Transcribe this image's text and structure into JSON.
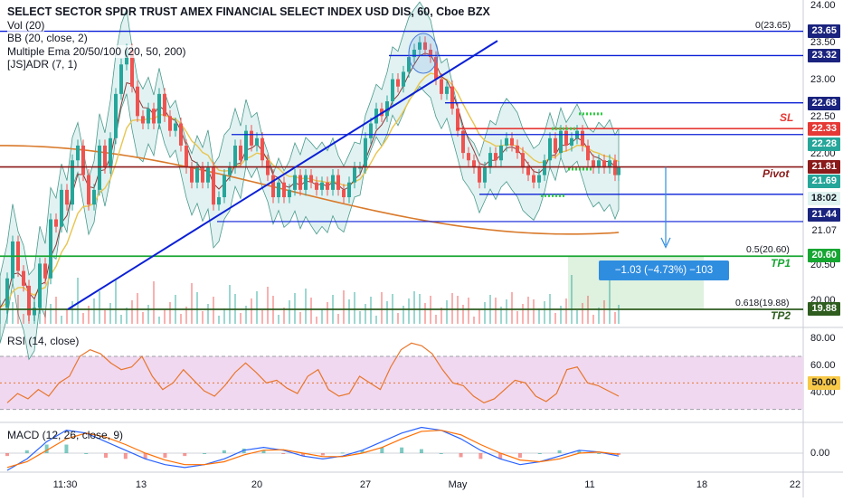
{
  "header": {
    "title": "SELECT SECTOR SPDR TRUST AMEX FINANCIAL SELECT INDEX USD DIS, 60, Cboe BZX",
    "indicators": [
      "Vol (20)",
      "BB (20, close, 2)",
      "Multiple Ema 20/50/100 (20, 50, 200)",
      "[JS]ADR (7, 1)"
    ]
  },
  "rsi_panel": {
    "label": "RSI (14, close)"
  },
  "macd_panel": {
    "label": "MACD (12, 26, close, 9)"
  },
  "annotations": {
    "sl": "SL",
    "pivot": "Pivot",
    "tp1": "TP1",
    "tp2": "TP2",
    "fib_top": "0(23.65)",
    "fib_05": "0.5(20.60)",
    "fib_0618": "0.618(19.88)",
    "measure": "−1.03 (−4.73%) −103"
  },
  "colors": {
    "up": "#26a69a",
    "down": "#ef5350",
    "trendline": "#0a1fd6",
    "sl_red": "#e53935",
    "pivot_dark_red": "#8b1a1a",
    "tp_green": "#17a632",
    "tp2_dark": "#2e5d1f",
    "bb_fill": "#d5ecec",
    "ema20": "#d97a2b",
    "ema50": "#e8c54f",
    "rsi_band": "#f0d8f0",
    "rsi_line": "#e8762c",
    "macd_line": "#2962ff",
    "signal_line": "#ff6d00"
  },
  "chart_data": [
    {
      "type": "candlestick",
      "title": "SELECT SECTOR SPDR TRUST AMEX FINANCIAL SELECT INDEX USD DIS, 60, Cboe BZX",
      "x": [
        "11:30",
        "13",
        "20",
        "27",
        "May",
        "11",
        "18",
        "22"
      ],
      "ylim": [
        19.5,
        24.0
      ],
      "y_ticks": [
        20.0,
        20.5,
        21.0,
        21.5,
        22.0,
        22.5,
        23.0,
        23.5,
        24.0
      ],
      "path_points": [
        [
          0,
          19.9
        ],
        [
          8,
          20.3
        ],
        [
          14,
          20.8
        ],
        [
          20,
          20.4
        ],
        [
          26,
          20.2
        ],
        [
          32,
          19.8
        ],
        [
          38,
          19.9
        ],
        [
          44,
          20.5
        ],
        [
          50,
          20.3
        ],
        [
          56,
          21.1
        ],
        [
          62,
          21.0
        ],
        [
          68,
          21.5
        ],
        [
          74,
          21.3
        ],
        [
          80,
          21.9
        ],
        [
          86,
          22.1
        ],
        [
          92,
          21.7
        ],
        [
          98,
          21.3
        ],
        [
          104,
          21.5
        ],
        [
          110,
          22.1
        ],
        [
          116,
          21.8
        ],
        [
          122,
          22.2
        ],
        [
          128,
          22.8
        ],
        [
          134,
          23.2
        ],
        [
          140,
          23.4
        ],
        [
          146,
          22.9
        ],
        [
          152,
          22.5
        ],
        [
          158,
          22.4
        ],
        [
          164,
          22.6
        ],
        [
          170,
          22.4
        ],
        [
          176,
          22.8
        ],
        [
          182,
          22.5
        ],
        [
          188,
          22.3
        ],
        [
          194,
          22.4
        ],
        [
          200,
          22.1
        ],
        [
          206,
          21.8
        ],
        [
          212,
          21.6
        ],
        [
          218,
          21.8
        ],
        [
          224,
          21.6
        ],
        [
          230,
          21.8
        ],
        [
          236,
          21.3
        ],
        [
          242,
          21.4
        ],
        [
          248,
          21.7
        ],
        [
          254,
          21.8
        ],
        [
          260,
          22.1
        ],
        [
          266,
          21.9
        ],
        [
          272,
          22.3
        ],
        [
          278,
          22.1
        ],
        [
          284,
          22.2
        ],
        [
          290,
          21.9
        ],
        [
          296,
          21.7
        ],
        [
          302,
          21.4
        ],
        [
          308,
          21.6
        ],
        [
          314,
          21.4
        ],
        [
          320,
          21.5
        ],
        [
          326,
          21.7
        ],
        [
          332,
          21.5
        ],
        [
          338,
          21.7
        ],
        [
          344,
          21.6
        ],
        [
          350,
          21.5
        ],
        [
          356,
          21.6
        ],
        [
          362,
          21.5
        ],
        [
          368,
          21.7
        ],
        [
          374,
          21.5
        ],
        [
          380,
          21.4
        ],
        [
          386,
          21.6
        ],
        [
          392,
          21.8
        ],
        [
          398,
          21.8
        ],
        [
          404,
          22.2
        ],
        [
          410,
          22.4
        ],
        [
          416,
          22.6
        ],
        [
          422,
          22.5
        ],
        [
          428,
          22.7
        ],
        [
          434,
          23.0
        ],
        [
          440,
          22.9
        ],
        [
          446,
          23.1
        ],
        [
          452,
          23.3
        ],
        [
          458,
          23.4
        ],
        [
          464,
          23.5
        ],
        [
          470,
          23.4
        ],
        [
          476,
          23.3
        ],
        [
          482,
          23.0
        ],
        [
          488,
          22.8
        ],
        [
          494,
          22.9
        ],
        [
          500,
          22.6
        ],
        [
          506,
          22.3
        ],
        [
          512,
          22.0
        ],
        [
          518,
          21.9
        ],
        [
          524,
          21.8
        ],
        [
          530,
          21.6
        ],
        [
          536,
          21.8
        ],
        [
          542,
          22.0
        ],
        [
          548,
          21.9
        ],
        [
          554,
          22.1
        ],
        [
          560,
          22.2
        ],
        [
          566,
          22.1
        ],
        [
          572,
          22.0
        ],
        [
          578,
          21.8
        ],
        [
          584,
          21.7
        ],
        [
          590,
          21.6
        ],
        [
          596,
          21.7
        ],
        [
          602,
          21.9
        ],
        [
          608,
          22.2
        ],
        [
          614,
          22.0
        ],
        [
          620,
          22.3
        ],
        [
          626,
          22.1
        ],
        [
          632,
          22.2
        ],
        [
          638,
          22.3
        ],
        [
          644,
          22.1
        ],
        [
          650,
          21.9
        ],
        [
          656,
          21.8
        ],
        [
          662,
          21.9
        ],
        [
          668,
          21.8
        ],
        [
          674,
          21.9
        ],
        [
          680,
          21.7
        ],
        [
          684,
          21.81
        ]
      ]
    },
    {
      "type": "line",
      "name": "RSI (14, close)",
      "ylim": [
        25,
        85
      ],
      "y_ticks": [
        40.0,
        60.0,
        80.0
      ],
      "last_value": "50.00",
      "bands": [
        30,
        70
      ],
      "values": [
        35,
        42,
        38,
        45,
        40,
        50,
        55,
        70,
        75,
        72,
        65,
        60,
        62,
        70,
        55,
        45,
        50,
        60,
        52,
        44,
        40,
        48,
        58,
        65,
        58,
        50,
        52,
        46,
        42,
        55,
        60,
        45,
        40,
        42,
        55,
        50,
        45,
        62,
        75,
        80,
        78,
        72,
        60,
        50,
        48,
        40,
        35,
        38,
        45,
        52,
        50,
        40,
        36,
        42,
        60,
        62,
        50,
        48,
        44,
        40
      ]
    },
    {
      "type": "line",
      "name": "MACD (12, 26, close, 9)",
      "ylim": [
        -0.6,
        0.6
      ],
      "y_ticks": [
        0.0
      ],
      "macd": [
        -0.3,
        -0.1,
        0.2,
        0.4,
        0.35,
        0.2,
        0.05,
        -0.1,
        -0.2,
        -0.25,
        -0.2,
        -0.1,
        0.05,
        0.1,
        0.05,
        -0.05,
        -0.1,
        -0.05,
        0.05,
        0.2,
        0.35,
        0.45,
        0.4,
        0.25,
        0.05,
        -0.1,
        -0.2,
        -0.15,
        -0.05,
        0.05,
        0.02,
        -0.05
      ],
      "signal": [
        -0.25,
        -0.15,
        0.05,
        0.25,
        0.35,
        0.28,
        0.15,
        0.0,
        -0.12,
        -0.2,
        -0.2,
        -0.15,
        -0.03,
        0.05,
        0.06,
        0.0,
        -0.06,
        -0.06,
        0.0,
        0.1,
        0.25,
        0.38,
        0.4,
        0.32,
        0.15,
        0.0,
        -0.12,
        -0.15,
        -0.1,
        0.0,
        0.02,
        -0.02
      ]
    }
  ],
  "price_labels": [
    {
      "text": "23.65",
      "style": "navy"
    },
    {
      "text": "23.32",
      "style": "navy"
    },
    {
      "text": "22.68",
      "style": "navy"
    },
    {
      "text": "22.33",
      "style": "red"
    },
    {
      "text": "22.28",
      "style": "teal"
    },
    {
      "text": "21.81",
      "style": "darkred"
    },
    {
      "text": "21.69",
      "style": "teal"
    },
    {
      "text": "18:02",
      "style": "teal_light"
    },
    {
      "text": "21.44",
      "style": "navy"
    },
    {
      "text": "21.07",
      "style": "none"
    },
    {
      "text": "20.60",
      "style": "green"
    },
    {
      "text": "19.88",
      "style": "darkgreen"
    }
  ],
  "axis_labels": {
    "main": [
      "24.00",
      "23.50",
      "23.00",
      "22.50",
      "22.00",
      "20.50",
      "20.00"
    ],
    "rsi": [
      "80.00",
      "60.00",
      "40.00"
    ],
    "macd": [
      "0.00"
    ]
  }
}
